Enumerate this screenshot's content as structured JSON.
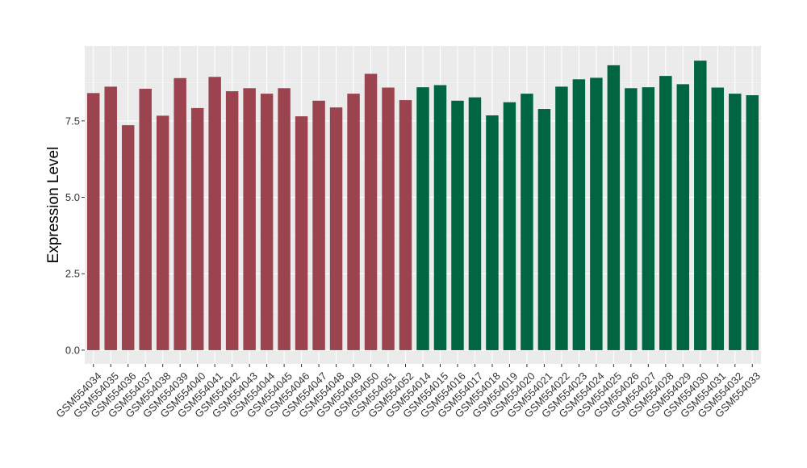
{
  "chart_data": {
    "type": "bar",
    "title": "",
    "xlabel": "",
    "ylabel": "Expression Level",
    "ylim": [
      -0.45,
      9.95
    ],
    "yticks": [
      0.0,
      2.5,
      5.0,
      7.5
    ],
    "ytick_labels": [
      "0.0",
      "2.5",
      "5.0",
      "7.5"
    ],
    "grid": true,
    "legend": "none",
    "panel_background": "#EBEBEB",
    "categories": [
      "GSM554034",
      "GSM554035",
      "GSM554036",
      "GSM554037",
      "GSM554038",
      "GSM554039",
      "GSM554040",
      "GSM554041",
      "GSM554042",
      "GSM554043",
      "GSM554044",
      "GSM554045",
      "GSM554046",
      "GSM554047",
      "GSM554048",
      "GSM554049",
      "GSM554050",
      "GSM554051",
      "GSM554052",
      "GSM554014",
      "GSM554015",
      "GSM554016",
      "GSM554017",
      "GSM554018",
      "GSM554019",
      "GSM554020",
      "GSM554021",
      "GSM554022",
      "GSM554023",
      "GSM554024",
      "GSM554025",
      "GSM554026",
      "GSM554027",
      "GSM554028",
      "GSM554029",
      "GSM554030",
      "GSM554031",
      "GSM554032",
      "GSM554033"
    ],
    "values": [
      8.41,
      8.62,
      7.36,
      8.55,
      7.67,
      8.9,
      7.92,
      8.94,
      8.47,
      8.57,
      8.39,
      8.57,
      7.65,
      8.16,
      7.94,
      8.39,
      9.04,
      8.59,
      8.18,
      8.6,
      8.67,
      8.16,
      8.27,
      7.68,
      8.11,
      8.39,
      7.89,
      8.62,
      8.86,
      8.91,
      9.32,
      8.57,
      8.6,
      8.97,
      8.7,
      9.47,
      8.59,
      8.39,
      8.34
    ],
    "colors": [
      "#9B4450",
      "#9B4450",
      "#9B4450",
      "#9B4450",
      "#9B4450",
      "#9B4450",
      "#9B4450",
      "#9B4450",
      "#9B4450",
      "#9B4450",
      "#9B4450",
      "#9B4450",
      "#9B4450",
      "#9B4450",
      "#9B4450",
      "#9B4450",
      "#9B4450",
      "#9B4450",
      "#9B4450",
      "#006642",
      "#006642",
      "#006642",
      "#006642",
      "#006642",
      "#006642",
      "#006642",
      "#006642",
      "#006642",
      "#006642",
      "#006642",
      "#006642",
      "#006642",
      "#006642",
      "#006642",
      "#006642",
      "#006642",
      "#006642",
      "#006642",
      "#006642"
    ]
  }
}
